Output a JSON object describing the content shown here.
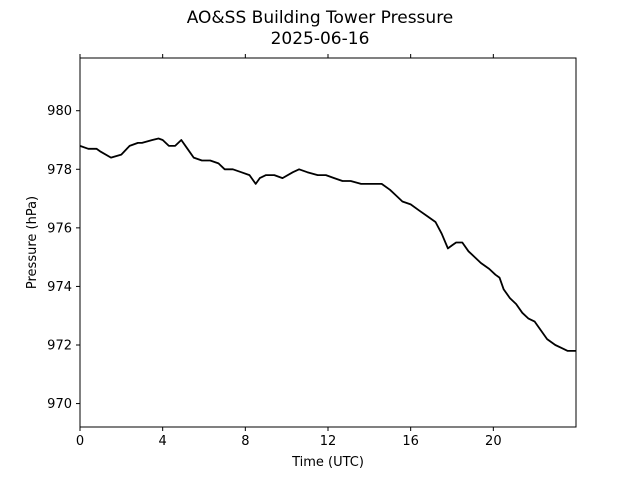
{
  "chart_data": {
    "type": "line",
    "title": "AO&SS Building Tower Pressure",
    "subtitle": "2025-06-16",
    "xlabel": "Time (UTC)",
    "ylabel": "Pressure (hPa)",
    "xlim": [
      0,
      24
    ],
    "ylim": [
      969.2,
      981.8
    ],
    "x_ticks": [
      0,
      4,
      8,
      12,
      16,
      20
    ],
    "y_ticks": [
      970,
      972,
      974,
      976,
      978,
      980
    ],
    "grid": false,
    "legend": "none",
    "series": [
      {
        "color": "#000000",
        "x": [
          0,
          0.4,
          0.8,
          1.0,
          1.5,
          2.0,
          2.4,
          2.8,
          3.0,
          3.5,
          3.8,
          4.0,
          4.3,
          4.6,
          4.9,
          5.2,
          5.5,
          5.9,
          6.3,
          6.7,
          7.0,
          7.4,
          7.8,
          8.2,
          8.5,
          8.7,
          9.0,
          9.4,
          9.8,
          10.3,
          10.6,
          11.0,
          11.5,
          11.9,
          12.3,
          12.7,
          13.1,
          13.6,
          14.2,
          14.6,
          15.0,
          15.3,
          15.6,
          16.0,
          16.4,
          16.8,
          17.2,
          17.5,
          17.8,
          18.0,
          18.2,
          18.5,
          18.8,
          19.1,
          19.4,
          19.8,
          20.1,
          20.3,
          20.5,
          20.8,
          21.1,
          21.4,
          21.7,
          22.0,
          22.3,
          22.6,
          23.0,
          23.3,
          23.6,
          24.0
        ],
        "values": [
          978.8,
          978.7,
          978.7,
          978.6,
          978.4,
          978.5,
          978.8,
          978.9,
          978.9,
          979.0,
          979.05,
          979.0,
          978.8,
          978.8,
          979.0,
          978.7,
          978.4,
          978.3,
          978.3,
          978.2,
          978.0,
          978.0,
          977.9,
          977.8,
          977.5,
          977.7,
          977.8,
          977.8,
          977.7,
          977.9,
          978.0,
          977.9,
          977.8,
          977.8,
          977.7,
          977.6,
          977.6,
          977.5,
          977.5,
          977.5,
          977.3,
          977.1,
          976.9,
          976.8,
          976.6,
          976.4,
          976.2,
          975.8,
          975.3,
          975.4,
          975.5,
          975.5,
          975.2,
          975.0,
          974.8,
          974.6,
          974.4,
          974.3,
          973.9,
          973.6,
          973.4,
          973.1,
          972.9,
          972.8,
          972.5,
          972.2,
          972.0,
          971.9,
          971.8,
          971.8
        ]
      }
    ]
  }
}
